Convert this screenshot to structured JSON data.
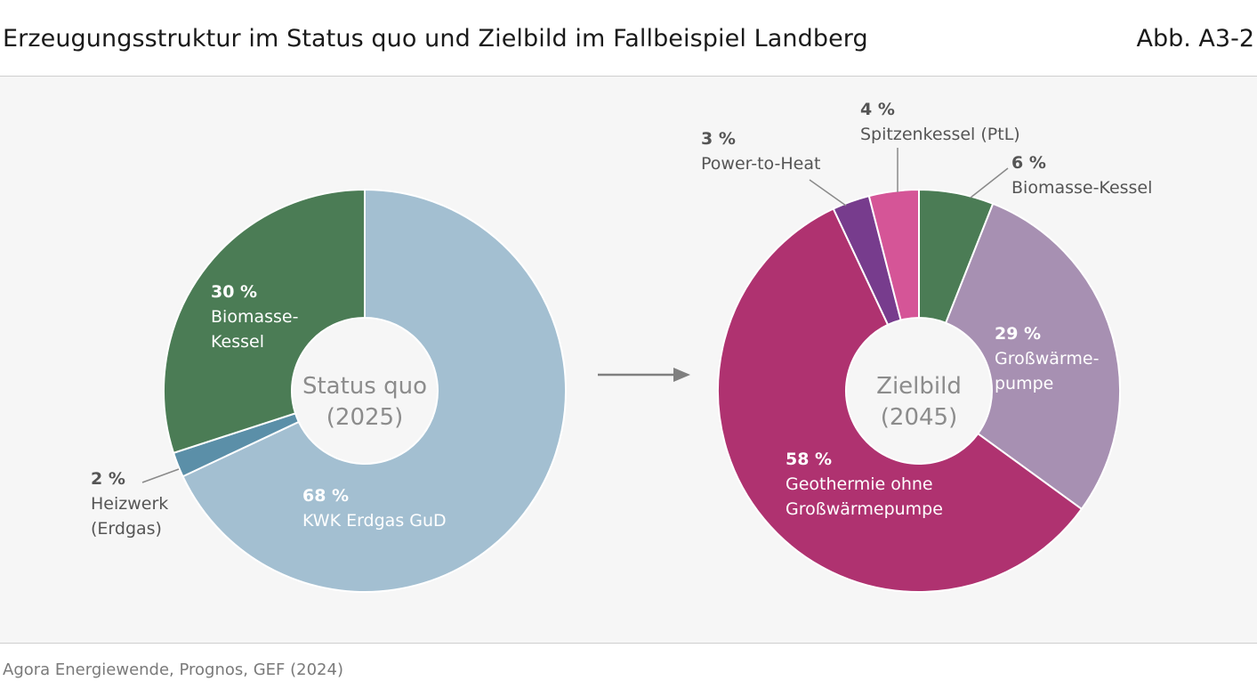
{
  "header": {
    "title": "Erzeugungsstruktur im Status quo und Zielbild im Fallbeispiel Landberg",
    "figure_number": "Abb. A3-2"
  },
  "source": "Agora Energiewende, Prognos, GEF (2024)",
  "colors": {
    "panel_background": "#f6f6f6",
    "kwk_erdgas": "#a3bfd1",
    "heizwerk": "#5b8fa8",
    "biomasse": "#4b7c55",
    "grosswaermepumpe": "#a790b2",
    "geothermie": "#af3270",
    "power_to_heat": "#773c8d",
    "spitzenkessel": "#d55597",
    "arrow": "#7f7f7f"
  },
  "chart_data": [
    {
      "type": "pie",
      "variant": "donut",
      "center_label": [
        "Status quo",
        "(2025)"
      ],
      "slices": [
        {
          "key": "kwk",
          "percent_label": "68 %",
          "name_lines": [
            "KWK Erdgas GuD"
          ],
          "value": 68,
          "color": "#a3bfd1"
        },
        {
          "key": "heizwerk",
          "percent_label": "2 %",
          "name_lines": [
            "Heizwerk",
            "(Erdgas)"
          ],
          "value": 2,
          "color": "#5b8fa8"
        },
        {
          "key": "biomasse",
          "percent_label": "30 %",
          "name_lines": [
            "Biomasse-",
            "Kessel"
          ],
          "value": 30,
          "color": "#4b7c55"
        }
      ]
    },
    {
      "type": "pie",
      "variant": "donut",
      "center_label": [
        "Zielbild",
        "(2045)"
      ],
      "slices": [
        {
          "key": "biomasse",
          "percent_label": "6 %",
          "name_lines": [
            "Biomasse-Kessel"
          ],
          "value": 6,
          "color": "#4b7c55"
        },
        {
          "key": "gwp",
          "percent_label": "29 %",
          "name_lines": [
            "Großwärme-",
            "pumpe"
          ],
          "value": 29,
          "color": "#a790b2"
        },
        {
          "key": "geothermie",
          "percent_label": "58 %",
          "name_lines": [
            "Geothermie ohne",
            "Großwärmepumpe"
          ],
          "value": 58,
          "color": "#af3270"
        },
        {
          "key": "pth",
          "percent_label": "3 %",
          "name_lines": [
            "Power-to-Heat"
          ],
          "value": 3,
          "color": "#773c8d"
        },
        {
          "key": "spitzen",
          "percent_label": "4 %",
          "name_lines": [
            "Spitzenkessel (PtL)"
          ],
          "value": 4,
          "color": "#d55597"
        }
      ]
    }
  ]
}
